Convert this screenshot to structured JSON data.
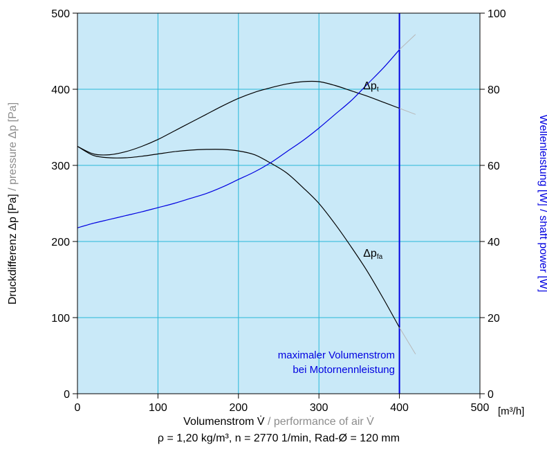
{
  "chart_data": {
    "type": "line",
    "x_axis": {
      "label_main": "Volumenstrom V̇",
      "label_translation": " / performance of air V̇",
      "unit": "[m³/h]",
      "range": [
        0,
        500
      ],
      "ticks": [
        "0",
        "100",
        "200",
        "300",
        "400",
        "500"
      ]
    },
    "y_left": {
      "label_main": "Druckdifferenz Δp [Pa]",
      "label_translation": " / pressure Δp [Pa]",
      "range": [
        0,
        500
      ],
      "ticks": [
        "0",
        "100",
        "200",
        "300",
        "400",
        "500"
      ]
    },
    "y_right": {
      "label_main": "Wellenleistung [W]",
      "label_translation": " / shaft power [W]",
      "range": [
        0,
        100
      ],
      "ticks": [
        "0",
        "20",
        "40",
        "60",
        "80",
        "100"
      ]
    },
    "grid": true,
    "conditions": "ρ = 1,20 kg/m³, n = 2770 1/min, Rad-Ø = 120 mm",
    "max_flow": {
      "x": 400,
      "label_line1": "maximaler Volumenstrom",
      "label_line2": "bei Motornennleistung"
    },
    "colors": {
      "plot_bg": "#c9e9f8",
      "grid": "#27b6d8",
      "pressure": "#000000",
      "power": "#0000e0",
      "extension": "#b8b8b8",
      "translation_text": "#8c8c8c",
      "max_flow_text": "#0000e0"
    },
    "series": [
      {
        "name": "Δp",
        "subscript": "t",
        "axis": "left",
        "label_at": [
          355,
          400
        ],
        "x": [
          0,
          20,
          40,
          60,
          80,
          100,
          120,
          140,
          160,
          180,
          200,
          220,
          240,
          260,
          280,
          300,
          320,
          340,
          360,
          380,
          400
        ],
        "y": [
          325,
          315,
          314,
          318,
          325,
          334,
          345,
          356,
          367,
          378,
          388,
          396,
          402,
          407,
          410,
          410,
          405,
          398,
          391,
          383,
          375
        ],
        "ext_x": [
          400,
          420
        ],
        "ext_y": [
          375,
          367
        ]
      },
      {
        "name": "Δp",
        "subscript": "fa",
        "axis": "left",
        "label_at": [
          355,
          180
        ],
        "x": [
          0,
          20,
          40,
          60,
          80,
          100,
          120,
          140,
          160,
          180,
          200,
          220,
          240,
          260,
          280,
          300,
          320,
          340,
          360,
          380,
          400
        ],
        "y": [
          325,
          313,
          310,
          310,
          312,
          315,
          318,
          320,
          321,
          321,
          319,
          314,
          303,
          290,
          271,
          250,
          223,
          193,
          161,
          125,
          87
        ],
        "ext_x": [
          400,
          420
        ],
        "ext_y": [
          87,
          52
        ]
      },
      {
        "name": "",
        "axis": "right",
        "x": [
          0,
          20,
          40,
          60,
          80,
          100,
          120,
          140,
          160,
          180,
          200,
          220,
          240,
          260,
          280,
          300,
          320,
          340,
          360,
          380,
          400
        ],
        "y": [
          43.6,
          44.8,
          45.8,
          46.8,
          47.8,
          48.9,
          50.0,
          51.3,
          52.6,
          54.3,
          56.3,
          58.3,
          60.7,
          63.6,
          66.5,
          69.8,
          73.4,
          77.0,
          81.3,
          85.6,
          90.4
        ],
        "ext_x": [
          400,
          420
        ],
        "ext_y": [
          90.4,
          94.4
        ]
      }
    ]
  }
}
